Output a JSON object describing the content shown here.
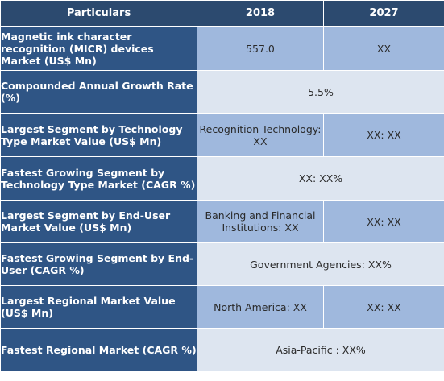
{
  "table": {
    "headers": [
      "Particulars",
      "2018",
      "2027"
    ],
    "rows": [
      {
        "label": "Magnetic ink character recognition (MICR) devices Market (US$ Mn)",
        "v2018": "557.0",
        "v2027": "XX"
      },
      {
        "label": "Compounded Annual Growth Rate (%)",
        "merged": "5.5%"
      },
      {
        "label": "Largest Segment by Technology Type Market Value (US$ Mn)",
        "v2018": "Recognition Technology: XX",
        "v2027": "XX: XX"
      },
      {
        "label": "Fastest Growing Segment by Technology Type Market (CAGR %)",
        "merged": "XX: XX%"
      },
      {
        "label": "Largest Segment by End-User Market Value (US$ Mn)",
        "v2018": "Banking and Financial Institutions: XX",
        "v2027": "XX: XX"
      },
      {
        "label": "Fastest Growing Segment by End-User (CAGR %)",
        "merged": "Government Agencies: XX%"
      },
      {
        "label": "Largest Regional Market Value (US$ Mn)",
        "v2018": "North America: XX",
        "v2027": "XX: XX"
      },
      {
        "label": "Fastest Regional Market (CAGR %)",
        "merged": "Asia-Pacific : XX%"
      }
    ]
  }
}
